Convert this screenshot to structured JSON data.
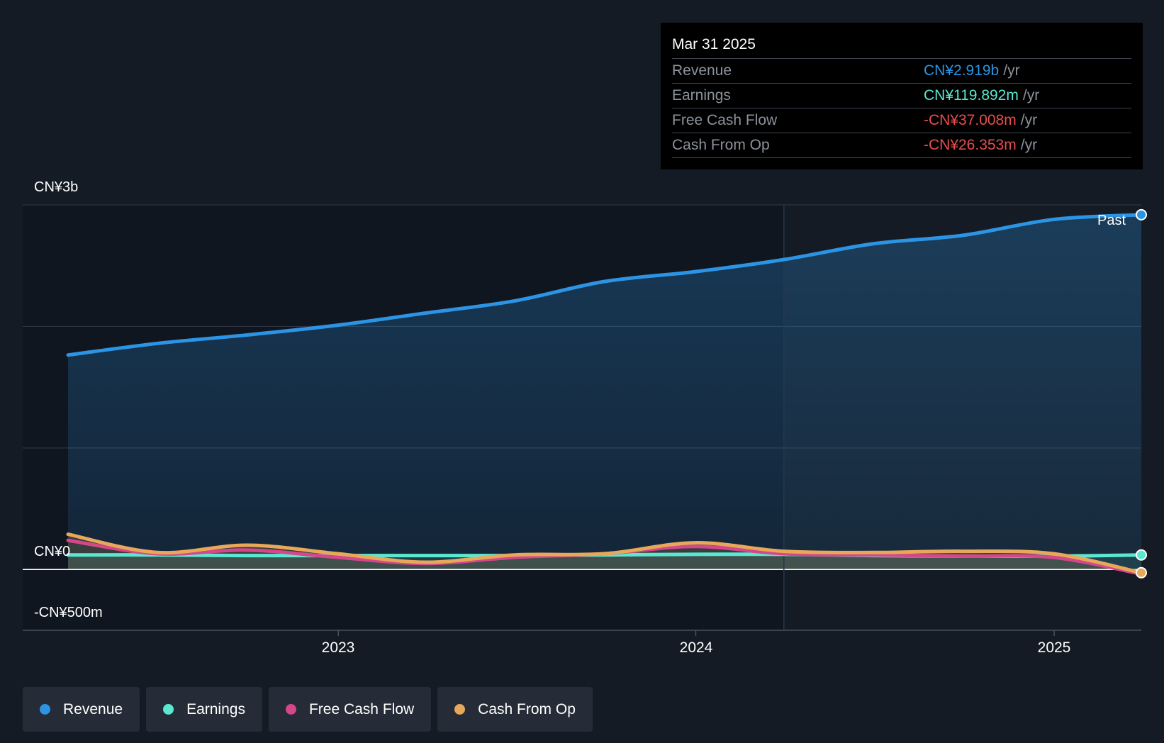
{
  "tooltip": {
    "date": "Mar 31 2025",
    "rows": [
      {
        "label": "Revenue",
        "value": "CN¥2.919b",
        "unit": "/yr",
        "color": "#2c94e4"
      },
      {
        "label": "Earnings",
        "value": "CN¥119.892m",
        "unit": "/yr",
        "color": "#5ae8d0"
      },
      {
        "label": "Free Cash Flow",
        "value": "-CN¥37.008m",
        "unit": "/yr",
        "color": "#e84d4d"
      },
      {
        "label": "Cash From Op",
        "value": "-CN¥26.353m",
        "unit": "/yr",
        "color": "#e84d4d"
      }
    ]
  },
  "past_label": "Past",
  "colors": {
    "revenue": "#2c94e4",
    "earnings": "#5ae8d0",
    "fcf": "#d4478a",
    "cfo": "#e8a85a",
    "background": "#151b24",
    "past_region": "#101620"
  },
  "chart_data": {
    "type": "area",
    "y_tick_labels": [
      "CN¥3b",
      "CN¥0",
      "-CN¥500m"
    ],
    "ylim": [
      -500,
      3000
    ],
    "y_unit": "CN¥m",
    "grid": true,
    "x_ticks": [
      {
        "label": "2023",
        "date": "2023-01-01"
      },
      {
        "label": "2024",
        "date": "2024-01-01"
      },
      {
        "label": "2025",
        "date": "2025-01-01"
      }
    ],
    "x_range": [
      "2022-03-31",
      "2025-03-31"
    ],
    "past_divider_date": "2024-03-31",
    "x": [
      "2022-03-31",
      "2022-06-30",
      "2022-09-30",
      "2022-12-31",
      "2023-03-31",
      "2023-06-30",
      "2023-09-30",
      "2023-12-31",
      "2024-03-31",
      "2024-06-30",
      "2024-09-30",
      "2024-12-31",
      "2025-03-31"
    ],
    "series": [
      {
        "name": "Revenue",
        "values": [
          1765,
          1860,
          1930,
          2010,
          2110,
          2210,
          2370,
          2450,
          2550,
          2680,
          2750,
          2880,
          2919
        ]
      },
      {
        "name": "Earnings",
        "values": [
          120,
          120,
          115,
          115,
          115,
          115,
          120,
          125,
          125,
          115,
          110,
          110,
          119.892
        ]
      },
      {
        "name": "Free Cash Flow",
        "values": [
          240,
          130,
          160,
          100,
          50,
          100,
          130,
          190,
          130,
          120,
          110,
          100,
          -37.008
        ]
      },
      {
        "name": "Cash From Op",
        "values": [
          290,
          140,
          200,
          130,
          60,
          120,
          130,
          220,
          150,
          140,
          150,
          130,
          -26.353
        ]
      }
    ],
    "legend": [
      "Revenue",
      "Earnings",
      "Free Cash Flow",
      "Cash From Op"
    ],
    "legend_position": "bottom-left"
  }
}
